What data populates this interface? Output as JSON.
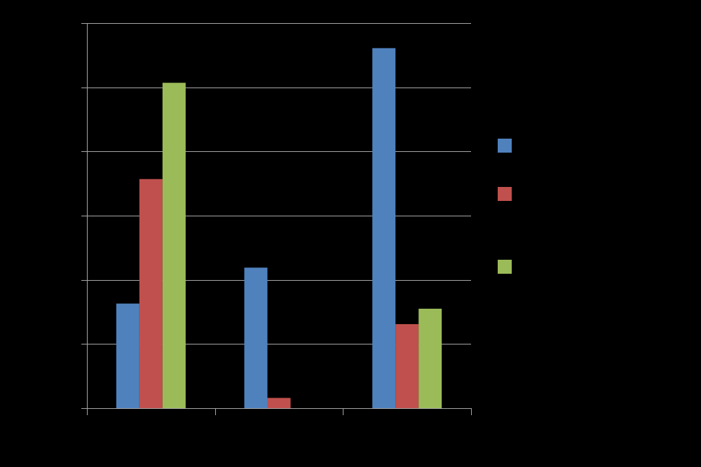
{
  "chart_data": {
    "type": "bar",
    "categories": [
      "",
      "",
      ""
    ],
    "series": [
      {
        "color": "#4F81BD",
        "values": [
          1.63,
          2.19,
          5.61
        ]
      },
      {
        "color": "#C0504D",
        "values": [
          3.57,
          0.16,
          1.31
        ]
      },
      {
        "color": "#9BBB59",
        "values": [
          5.07,
          0,
          1.55
        ]
      }
    ],
    "ylim": [
      0,
      6
    ],
    "grid": true,
    "legend": "right",
    "background": "#000000",
    "gridline_color": "#A6A6A6",
    "axis_color": "#A6A6A6"
  }
}
